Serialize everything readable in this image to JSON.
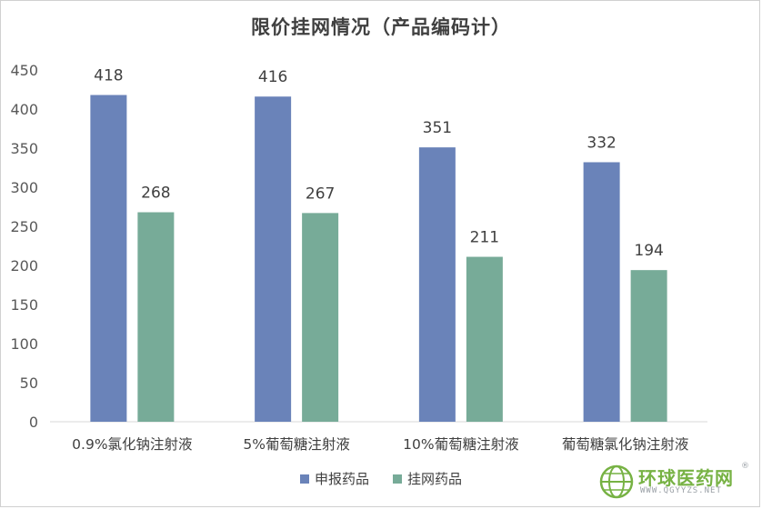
{
  "chart_data": {
    "type": "bar",
    "title": "限价挂网情况（产品编码计）",
    "categories": [
      "0.9%氯化钠注射液",
      "5%葡萄糖注射液",
      "10%葡萄糖注射液",
      "葡萄糖氯化钠注射液"
    ],
    "series": [
      {
        "name": "申报药品",
        "values": [
          418,
          416,
          351,
          332
        ],
        "color": "#6a83b9"
      },
      {
        "name": "挂网药品",
        "values": [
          268,
          267,
          211,
          194
        ],
        "color": "#77ab98"
      }
    ],
    "ylim": [
      0,
      450
    ],
    "yticks": [
      0,
      50,
      100,
      150,
      200,
      250,
      300,
      350,
      400,
      450
    ],
    "grid": false,
    "legend_position": "bottom"
  },
  "watermark": {
    "name": "环球医药网",
    "url": "WWW.QGYYZS.NET",
    "reg": "®"
  }
}
